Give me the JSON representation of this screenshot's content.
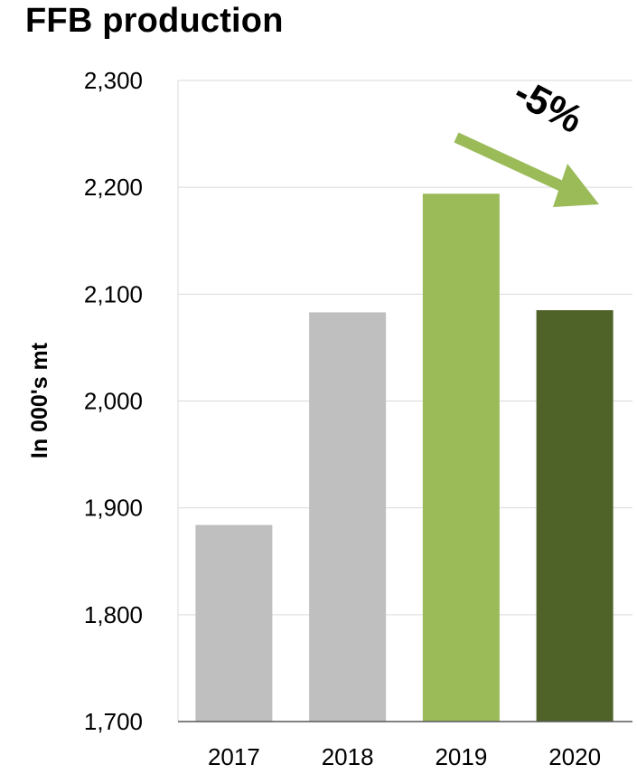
{
  "chart_data": {
    "type": "bar",
    "title": "FFB production",
    "ylabel": "In 000's mt",
    "xlabel": "",
    "categories": [
      "2017",
      "2018",
      "2019",
      "2020"
    ],
    "values": [
      1884,
      2083,
      2194,
      2085
    ],
    "bar_colors": [
      "#bfbfbf",
      "#bfbfbf",
      "#9bbb59",
      "#4f6228"
    ],
    "ylim": [
      1700,
      2300
    ],
    "yticks": [
      1700,
      1800,
      1900,
      2000,
      2100,
      2200,
      2300
    ],
    "ytick_labels": [
      "1,700",
      "1,800",
      "1,900",
      "2,000",
      "2,100",
      "2,200",
      "2,300"
    ],
    "grid": true,
    "annotation": {
      "text": "-5%",
      "arrow_color": "#9bbb59"
    }
  }
}
